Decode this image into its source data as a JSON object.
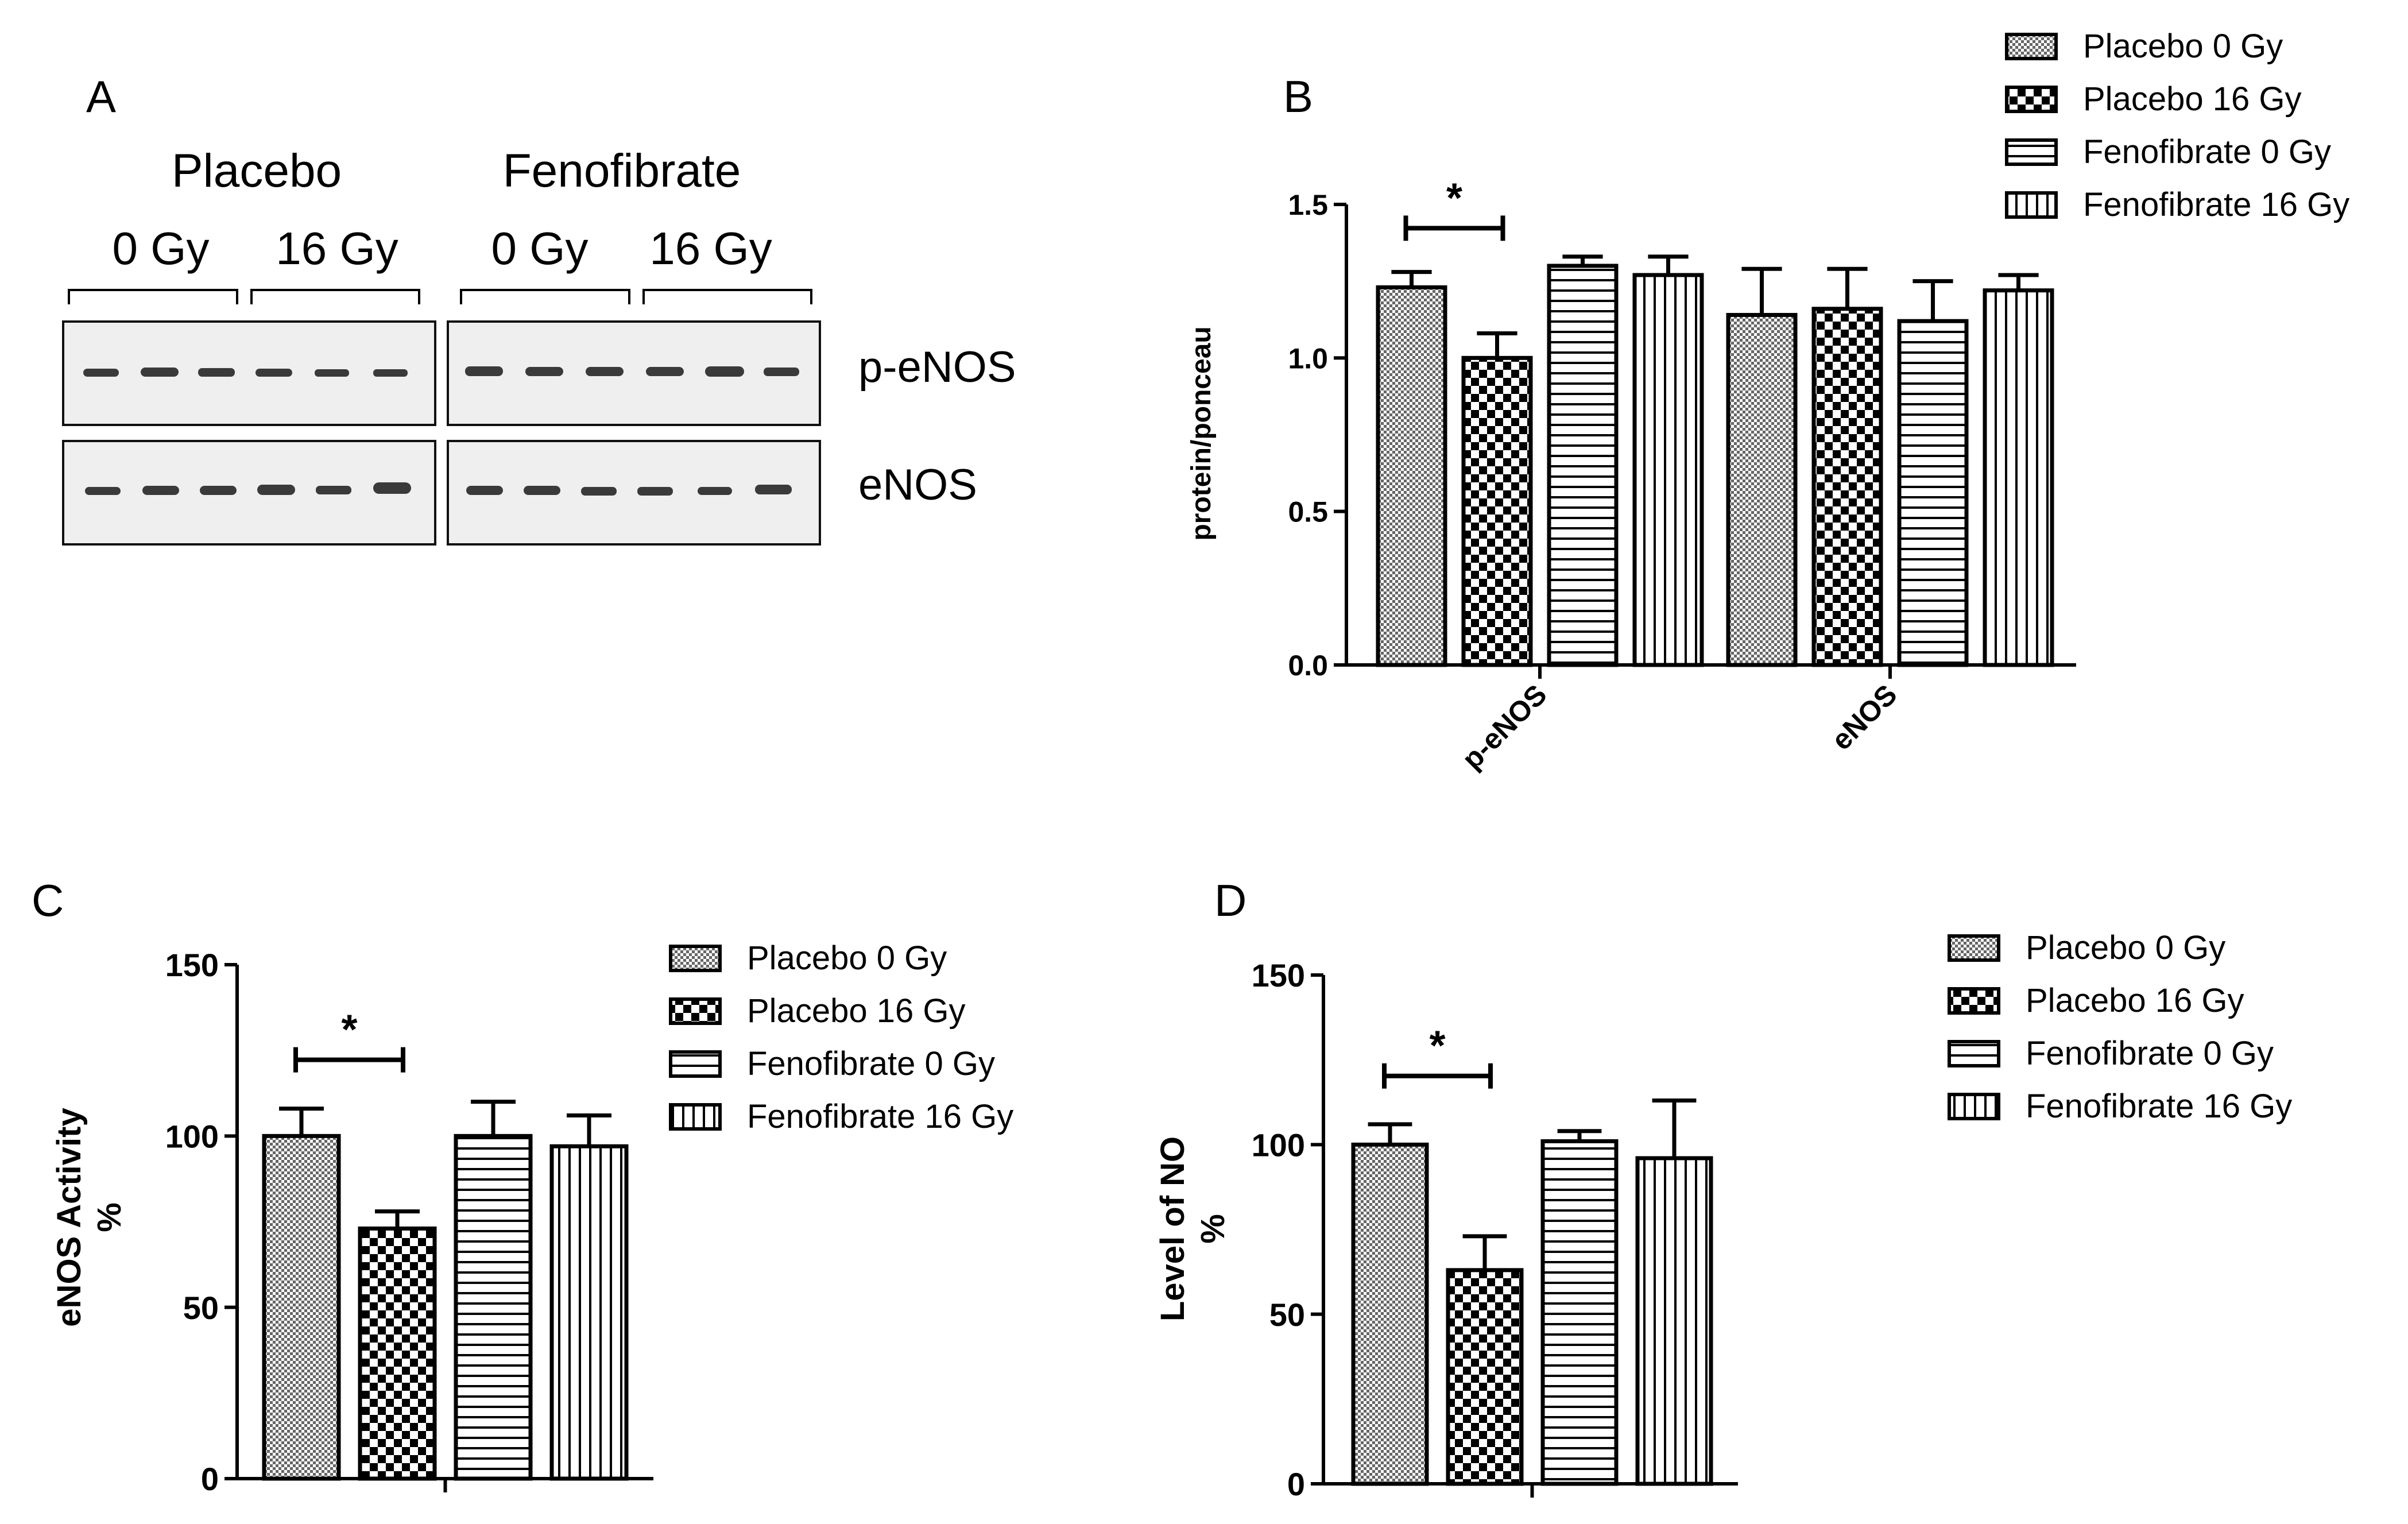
{
  "panel_labels": [
    "A",
    "B",
    "C",
    "D"
  ],
  "blot": {
    "groups": [
      "Placebo",
      "Fenofibrate"
    ],
    "doses": [
      "0 Gy",
      "16 Gy",
      "0 Gy",
      "16 Gy"
    ],
    "rows": [
      "p-eNOS",
      "eNOS"
    ]
  },
  "legend": {
    "entries": [
      "Placebo 0 Gy",
      "Placebo 16 Gy",
      "Fenofibrate 0 Gy",
      "Fenofibrate 16 Gy"
    ]
  },
  "significance_marker": "*",
  "chart_data": [
    {
      "panel": "B",
      "type": "bar",
      "categories": [
        "p-eNOS",
        "eNOS"
      ],
      "series": [
        {
          "name": "Placebo 0 Gy",
          "values": [
            1.23,
            1.14
          ],
          "errors": [
            0.05,
            0.15
          ]
        },
        {
          "name": "Placebo 16 Gy",
          "values": [
            1.0,
            1.16
          ],
          "errors": [
            0.08,
            0.13
          ]
        },
        {
          "name": "Fenofibrate 0 Gy",
          "values": [
            1.3,
            1.12
          ],
          "errors": [
            0.03,
            0.13
          ]
        },
        {
          "name": "Fenofibrate 16 Gy",
          "values": [
            1.27,
            1.22
          ],
          "errors": [
            0.06,
            0.05
          ]
        }
      ],
      "ylabel": "protein/ponceau",
      "ylim": [
        0,
        1.5
      ],
      "yticks": [
        "0.0",
        "0.5",
        "1.0",
        "1.5"
      ]
    },
    {
      "panel": "C",
      "type": "bar",
      "categories": [
        ""
      ],
      "series": [
        {
          "name": "Placebo 0 Gy",
          "values": [
            100
          ],
          "errors": [
            8
          ]
        },
        {
          "name": "Placebo 16 Gy",
          "values": [
            73
          ],
          "errors": [
            5
          ]
        },
        {
          "name": "Fenofibrate 0 Gy",
          "values": [
            100
          ],
          "errors": [
            10
          ]
        },
        {
          "name": "Fenofibrate 16 Gy",
          "values": [
            97
          ],
          "errors": [
            9
          ]
        }
      ],
      "ylabel": "eNOS Activity",
      "ylabel2": "%",
      "ylim": [
        0,
        150
      ],
      "yticks": [
        "0",
        "50",
        "100",
        "150"
      ]
    },
    {
      "panel": "D",
      "type": "bar",
      "categories": [
        ""
      ],
      "series": [
        {
          "name": "Placebo 0 Gy",
          "values": [
            100
          ],
          "errors": [
            6
          ]
        },
        {
          "name": "Placebo 16 Gy",
          "values": [
            63
          ],
          "errors": [
            10
          ]
        },
        {
          "name": "Fenofibrate 0 Gy",
          "values": [
            101
          ],
          "errors": [
            3
          ]
        },
        {
          "name": "Fenofibrate 16 Gy",
          "values": [
            96
          ],
          "errors": [
            17
          ]
        }
      ],
      "ylabel": "Level of NO",
      "ylabel2": "%",
      "ylim": [
        0,
        150
      ],
      "yticks": [
        "0",
        "50",
        "100",
        "150"
      ]
    }
  ]
}
